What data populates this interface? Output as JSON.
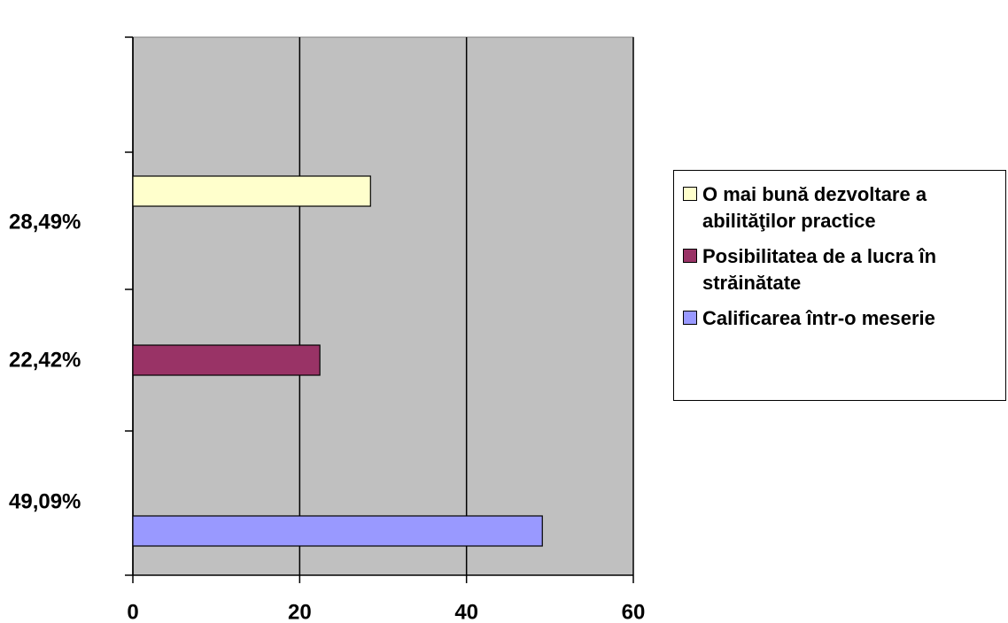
{
  "chart_data": {
    "type": "bar",
    "orientation": "horizontal",
    "series": [
      {
        "name": "O mai bună dezvoltare a abilităţilor practice",
        "color": "#ffffcc",
        "values": [
          28.49
        ],
        "value_labels": [
          "28,49%"
        ]
      },
      {
        "name": "Posibilitatea de a lucra în străinătate",
        "color": "#993366",
        "values": [
          22.42
        ],
        "value_labels": [
          "22,42%"
        ]
      },
      {
        "name": "Calificarea într-o meserie",
        "color": "#9999ff",
        "values": [
          49.09
        ],
        "value_labels": [
          "49,09%"
        ]
      }
    ],
    "xlim": [
      0,
      60
    ],
    "xticks": [
      0,
      20,
      40,
      60
    ],
    "grid": true,
    "plot_background": "#c0c0c0",
    "legend": "right"
  }
}
